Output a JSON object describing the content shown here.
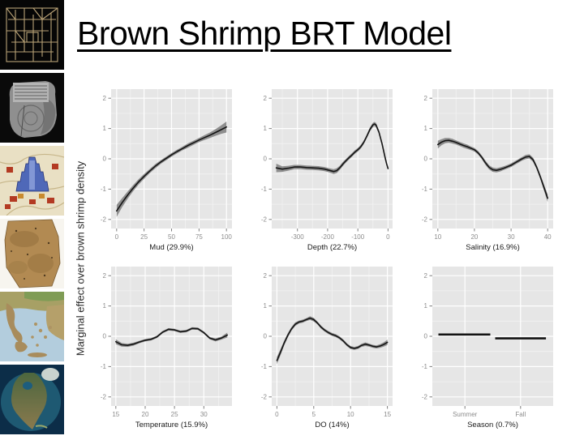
{
  "title": "Brown Shrimp BRT Model",
  "sidebar": {
    "images": [
      "ancient-cuneiform-grid-map",
      "babylonian-world-map-tablet",
      "medieval-tower-of-babel-map",
      "parchment-map-fragment",
      "greece-relief-map",
      "north-america-satellite-map"
    ]
  },
  "chart_data": {
    "type": "line",
    "ylab": "Marginal effect over brown shrimp density",
    "ylim": [
      -2.3,
      2.3
    ],
    "yticks": [
      -2,
      -1,
      0,
      1,
      2
    ],
    "colors": {
      "panel_bg": "#e6e6e6",
      "grid_major": "#ffffff",
      "grid_minor": "#f2f2f2",
      "tick_text": "#8c8c8c",
      "tick_mark": "#7f7f7f",
      "axis_title": "#1a1a1a",
      "band": "#8e8e8e",
      "line": "#141414"
    },
    "panels": [
      {
        "xlabel": "Mud (29.9%)",
        "xlim": [
          -5,
          105
        ],
        "xticks": [
          0,
          25,
          50,
          75,
          100
        ],
        "x": [
          0,
          5,
          10,
          15,
          20,
          25,
          30,
          35,
          40,
          45,
          50,
          55,
          60,
          65,
          70,
          75,
          80,
          85,
          90,
          95,
          100
        ],
        "y": [
          -1.72,
          -1.45,
          -1.2,
          -0.97,
          -0.76,
          -0.58,
          -0.41,
          -0.25,
          -0.11,
          0.01,
          0.13,
          0.24,
          0.34,
          0.44,
          0.53,
          0.62,
          0.7,
          0.78,
          0.87,
          0.96,
          1.05
        ],
        "ci": [
          0.2,
          0.15,
          0.12,
          0.1,
          0.09,
          0.08,
          0.07,
          0.07,
          0.06,
          0.06,
          0.06,
          0.06,
          0.06,
          0.07,
          0.07,
          0.07,
          0.08,
          0.09,
          0.11,
          0.14,
          0.18
        ]
      },
      {
        "xlabel": "Depth (22.7%)",
        "xlim": [
          -385,
          15
        ],
        "xticks": [
          -300,
          -200,
          -100,
          0
        ],
        "x": [
          -370,
          -350,
          -330,
          -310,
          -290,
          -270,
          -250,
          -230,
          -210,
          -195,
          -180,
          -170,
          -160,
          -150,
          -140,
          -130,
          -120,
          -110,
          -100,
          -90,
          -80,
          -70,
          -60,
          -50,
          -45,
          -40,
          -30,
          -20,
          -10,
          -5,
          0
        ],
        "y": [
          -0.3,
          -0.34,
          -0.31,
          -0.27,
          -0.27,
          -0.29,
          -0.3,
          -0.31,
          -0.34,
          -0.38,
          -0.42,
          -0.39,
          -0.3,
          -0.18,
          -0.07,
          0.03,
          0.12,
          0.22,
          0.3,
          0.4,
          0.55,
          0.75,
          0.97,
          1.12,
          1.15,
          1.12,
          0.88,
          0.5,
          0.05,
          -0.15,
          -0.32
        ],
        "ci": [
          0.14,
          0.09,
          0.08,
          0.07,
          0.07,
          0.07,
          0.07,
          0.07,
          0.07,
          0.07,
          0.08,
          0.08,
          0.07,
          0.07,
          0.06,
          0.06,
          0.06,
          0.06,
          0.06,
          0.06,
          0.06,
          0.06,
          0.07,
          0.07,
          0.07,
          0.07,
          0.06,
          0.05,
          0.04,
          0.03,
          0.03
        ]
      },
      {
        "xlabel": "Salinity (16.9%)",
        "xlim": [
          8.5,
          41.5
        ],
        "xticks": [
          10,
          20,
          30,
          40
        ],
        "x": [
          10,
          11,
          12,
          13,
          14,
          15,
          16,
          17,
          18,
          19,
          20,
          21,
          22,
          23,
          24,
          25,
          26,
          27,
          28,
          29,
          30,
          31,
          32,
          33,
          34,
          35,
          36,
          37,
          38,
          39,
          40
        ],
        "y": [
          0.47,
          0.55,
          0.6,
          0.61,
          0.58,
          0.54,
          0.49,
          0.44,
          0.4,
          0.35,
          0.3,
          0.2,
          0.05,
          -0.13,
          -0.28,
          -0.36,
          -0.38,
          -0.35,
          -0.31,
          -0.26,
          -0.21,
          -0.14,
          -0.07,
          0.0,
          0.06,
          0.08,
          -0.03,
          -0.28,
          -0.6,
          -0.95,
          -1.3
        ],
        "ci": [
          0.13,
          0.1,
          0.09,
          0.08,
          0.08,
          0.07,
          0.07,
          0.07,
          0.07,
          0.06,
          0.06,
          0.06,
          0.06,
          0.07,
          0.07,
          0.07,
          0.07,
          0.07,
          0.06,
          0.06,
          0.06,
          0.06,
          0.06,
          0.06,
          0.07,
          0.07,
          0.07,
          0.07,
          0.08,
          0.1,
          0.13
        ]
      },
      {
        "xlabel": "Temperature (15.9%)",
        "xlim": [
          14.2,
          34.8
        ],
        "xticks": [
          15,
          20,
          25,
          30
        ],
        "x": [
          15,
          16,
          17,
          18,
          19,
          20,
          21,
          22,
          23,
          24,
          25,
          26,
          27,
          28,
          29,
          30,
          31,
          32,
          33,
          34
        ],
        "y": [
          -0.18,
          -0.28,
          -0.3,
          -0.26,
          -0.19,
          -0.13,
          -0.1,
          -0.02,
          0.14,
          0.23,
          0.21,
          0.15,
          0.17,
          0.26,
          0.25,
          0.12,
          -0.06,
          -0.12,
          -0.06,
          0.04
        ],
        "ci": [
          0.08,
          0.06,
          0.05,
          0.05,
          0.04,
          0.04,
          0.04,
          0.04,
          0.04,
          0.04,
          0.04,
          0.04,
          0.04,
          0.04,
          0.04,
          0.04,
          0.04,
          0.05,
          0.05,
          0.08
        ]
      },
      {
        "xlabel": "DO (14%)",
        "xlim": [
          -0.7,
          15.7
        ],
        "xticks": [
          0,
          5,
          10,
          15
        ],
        "x": [
          0,
          0.5,
          1,
          1.5,
          2,
          2.5,
          3,
          3.5,
          4,
          4.5,
          5,
          5.5,
          6,
          6.5,
          7,
          7.5,
          8,
          8.5,
          9,
          9.5,
          10,
          10.5,
          11,
          11.5,
          12,
          12.5,
          13,
          13.5,
          14,
          14.5,
          15
        ],
        "y": [
          -0.8,
          -0.52,
          -0.22,
          0.04,
          0.25,
          0.4,
          0.47,
          0.5,
          0.55,
          0.6,
          0.55,
          0.44,
          0.3,
          0.2,
          0.12,
          0.06,
          0.02,
          -0.05,
          -0.15,
          -0.28,
          -0.37,
          -0.4,
          -0.37,
          -0.3,
          -0.26,
          -0.29,
          -0.33,
          -0.35,
          -0.32,
          -0.27,
          -0.2
        ],
        "ci": [
          0.12,
          0.1,
          0.08,
          0.07,
          0.06,
          0.06,
          0.05,
          0.05,
          0.05,
          0.06,
          0.06,
          0.05,
          0.05,
          0.05,
          0.05,
          0.05,
          0.05,
          0.05,
          0.05,
          0.05,
          0.05,
          0.05,
          0.05,
          0.05,
          0.06,
          0.05,
          0.05,
          0.05,
          0.06,
          0.07,
          0.09
        ]
      },
      {
        "xlabel": "Season (0.7%)",
        "xlim": [
          0,
          1
        ],
        "xticks": [
          0.27,
          0.73
        ],
        "xtick_labels": [
          "Summer",
          "Fall"
        ],
        "minor": false,
        "segments": [
          {
            "label": "Summer",
            "x": [
              0.05,
              0.48
            ],
            "y": 0.06
          },
          {
            "label": "Fall",
            "x": [
              0.52,
              0.94
            ],
            "y": -0.07
          }
        ]
      }
    ]
  }
}
